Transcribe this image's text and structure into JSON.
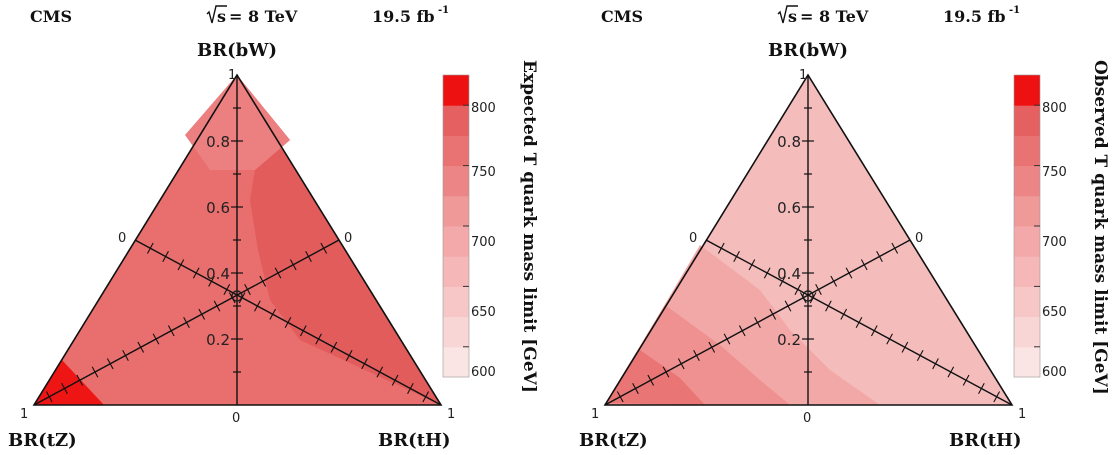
{
  "chart_data": [
    {
      "type": "heatmap",
      "subtype": "ternary",
      "experiment": "CMS",
      "energy_label": "s",
      "energy_value": "= 8 TeV",
      "luminosity": "19.5 fb",
      "luminosity_exp": "-1",
      "corner_labels": {
        "top": "BR(bW)",
        "left": "BR(tZ)",
        "right": "BR(tH)"
      },
      "tick_end_labels": {
        "top": "1",
        "left": "1",
        "right": "1",
        "bottom": "0",
        "upper_left": "0",
        "upper_right": "0"
      },
      "vertical_axis_ticks": [
        "0.2",
        "0.4",
        "0.6",
        "0.8"
      ],
      "vertical_axis_tick_values": [
        0.2,
        0.4,
        0.6,
        0.8
      ],
      "colorbar_label": "Expected T quark mass limit [GeV]",
      "colorbar_ticks": [
        "600",
        "650",
        "700",
        "750",
        "800"
      ],
      "colorbar_tick_values": [
        600,
        650,
        700,
        750,
        800
      ],
      "colorbar_range": [
        575,
        825
      ],
      "colorbar_bands": [
        {
          "from": 575,
          "to": 600,
          "color": "#fbe4e4"
        },
        {
          "from": 600,
          "to": 625,
          "color": "#f9d6d6"
        },
        {
          "from": 625,
          "to": 650,
          "color": "#f7c7c7"
        },
        {
          "from": 650,
          "to": 675,
          "color": "#f5b7b7"
        },
        {
          "from": 675,
          "to": 700,
          "color": "#f3a9a9"
        },
        {
          "from": 700,
          "to": 725,
          "color": "#f09999"
        },
        {
          "from": 725,
          "to": 750,
          "color": "#ec8686"
        },
        {
          "from": 750,
          "to": 775,
          "color": "#e97272"
        },
        {
          "from": 775,
          "to": 800,
          "color": "#e56060"
        },
        {
          "from": 800,
          "to": 825,
          "color": "#ee1111"
        }
      ],
      "regions": [
        {
          "label": "~760 GeV",
          "color": "#e96e6e"
        },
        {
          "label": "~780 GeV",
          "color": "#e25c5c"
        },
        {
          "label": "~735 GeV",
          "color": "#ec7f7f"
        },
        {
          "label": ">800 GeV",
          "color": "#ee1515"
        }
      ]
    },
    {
      "type": "heatmap",
      "subtype": "ternary",
      "experiment": "CMS",
      "energy_label": "s",
      "energy_value": "= 8 TeV",
      "luminosity": "19.5 fb",
      "luminosity_exp": "-1",
      "corner_labels": {
        "top": "BR(bW)",
        "left": "BR(tZ)",
        "right": "BR(tH)"
      },
      "tick_end_labels": {
        "top": "1",
        "left": "1",
        "right": "1",
        "bottom": "0",
        "upper_left": "0",
        "upper_right": "0"
      },
      "vertical_axis_ticks": [
        "0.2",
        "0.4",
        "0.6",
        "0.8"
      ],
      "vertical_axis_tick_values": [
        0.2,
        0.4,
        0.6,
        0.8
      ],
      "colorbar_label": "Observed T quark mass limit [GeV]",
      "colorbar_ticks": [
        "600",
        "650",
        "700",
        "750",
        "800"
      ],
      "colorbar_tick_values": [
        600,
        650,
        700,
        750,
        800
      ],
      "colorbar_range": [
        575,
        825
      ],
      "colorbar_bands": [
        {
          "from": 575,
          "to": 600,
          "color": "#fbe4e4"
        },
        {
          "from": 600,
          "to": 625,
          "color": "#f9d6d6"
        },
        {
          "from": 625,
          "to": 650,
          "color": "#f7c7c7"
        },
        {
          "from": 650,
          "to": 675,
          "color": "#f5b7b7"
        },
        {
          "from": 675,
          "to": 700,
          "color": "#f3a9a9"
        },
        {
          "from": 700,
          "to": 725,
          "color": "#f09999"
        },
        {
          "from": 725,
          "to": 750,
          "color": "#ec8686"
        },
        {
          "from": 750,
          "to": 775,
          "color": "#e97272"
        },
        {
          "from": 775,
          "to": 800,
          "color": "#e56060"
        },
        {
          "from": 800,
          "to": 825,
          "color": "#ee1111"
        }
      ],
      "regions": [
        {
          "label": "~665 GeV",
          "color": "#f5bcbc"
        },
        {
          "label": "~700 GeV",
          "color": "#f3a8a8"
        },
        {
          "label": "~735 GeV",
          "color": "#ef9191"
        },
        {
          "label": "~765 GeV",
          "color": "#e97575"
        }
      ]
    }
  ]
}
